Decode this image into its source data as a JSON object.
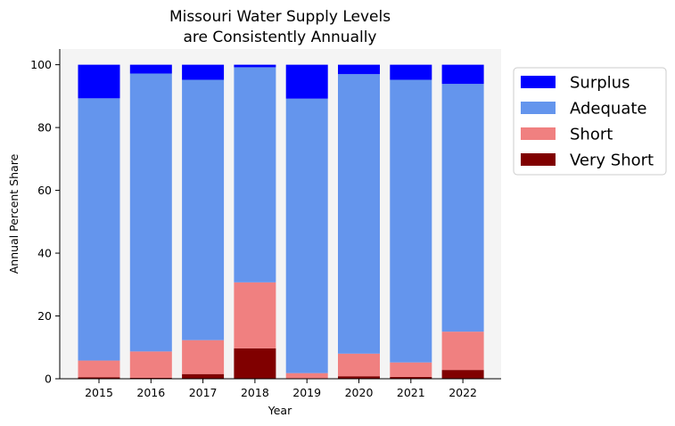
{
  "chart_data": {
    "type": "bar",
    "stacked": true,
    "title_lines": [
      "Missouri Water Supply Levels",
      "are Consistently Annually"
    ],
    "xlabel": "Year",
    "ylabel": "Annual Percent Share",
    "categories": [
      "2015",
      "2016",
      "2017",
      "2018",
      "2019",
      "2020",
      "2021",
      "2022"
    ],
    "ylim": [
      0,
      105
    ],
    "yticks": [
      0,
      20,
      40,
      60,
      80,
      100
    ],
    "series": [
      {
        "name": "Very Short",
        "color": "#800000",
        "values": [
          0.5,
          0.3,
          1.5,
          9.7,
          0.0,
          0.8,
          0.6,
          2.8
        ]
      },
      {
        "name": "Short",
        "color": "#f08080",
        "values": [
          5.3,
          8.4,
          10.8,
          21.0,
          1.8,
          7.2,
          4.6,
          12.2
        ]
      },
      {
        "name": "Adequate",
        "color": "#6495ed",
        "values": [
          83.5,
          88.5,
          82.9,
          68.5,
          87.4,
          89.0,
          90.0,
          78.9
        ]
      },
      {
        "name": "Surplus",
        "color": "#0000ff",
        "values": [
          10.7,
          2.8,
          4.8,
          0.8,
          10.8,
          3.0,
          4.8,
          6.1
        ]
      }
    ],
    "legend_order": [
      "Surplus",
      "Adequate",
      "Short",
      "Very Short"
    ],
    "legend_position": "outside-top-right",
    "grid": false,
    "plot_background": "#f4f4f4"
  }
}
